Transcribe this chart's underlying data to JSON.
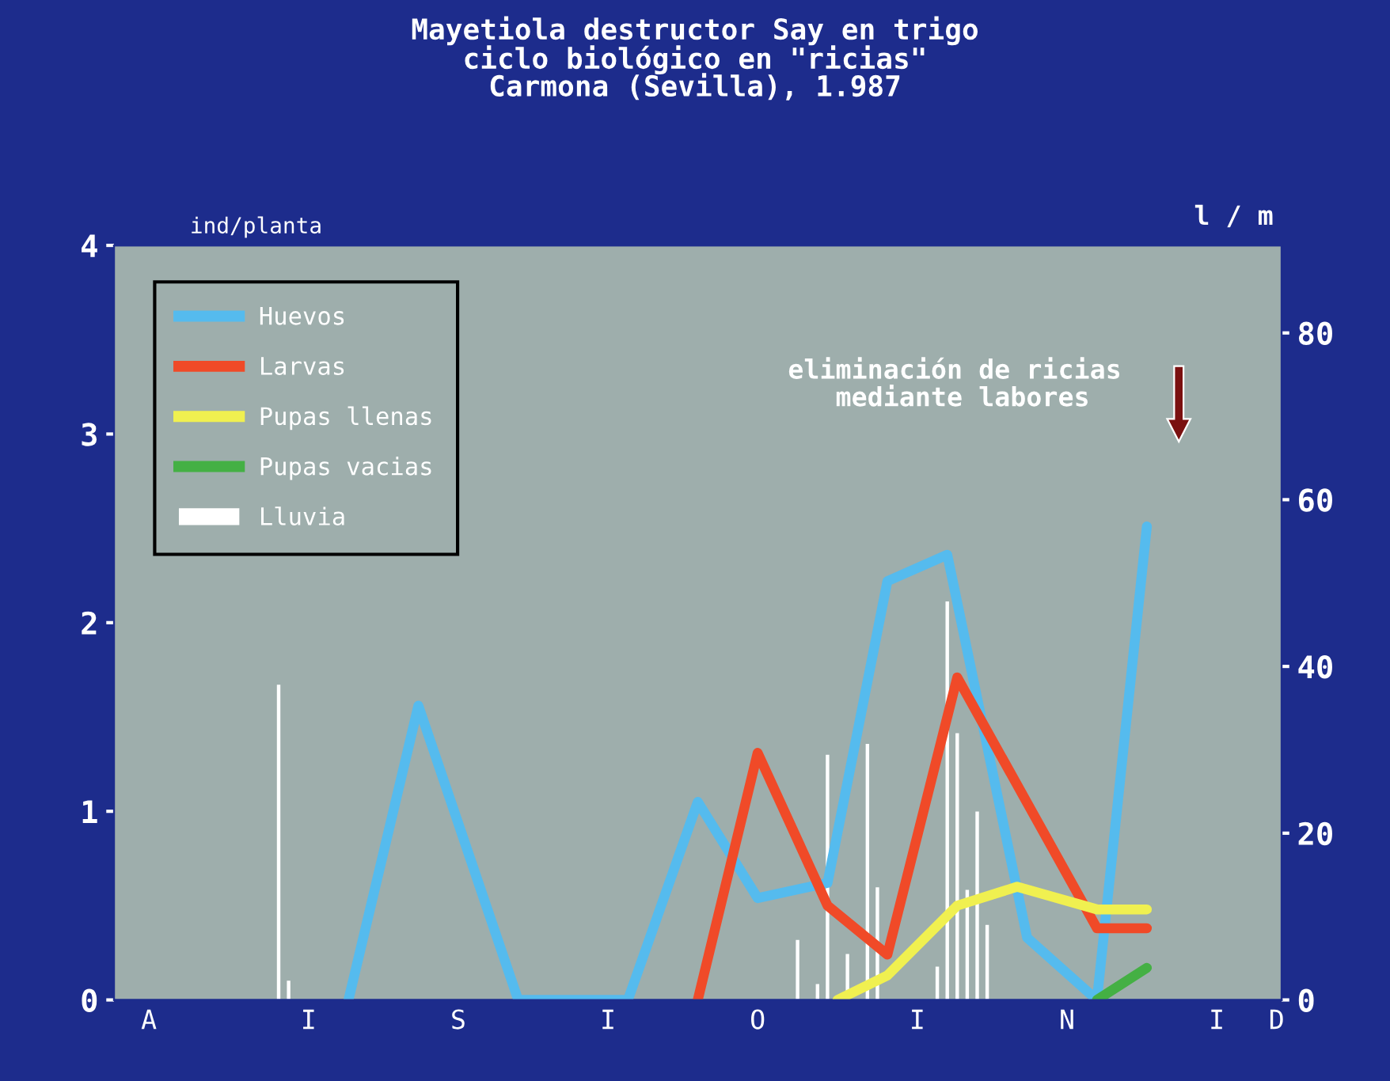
{
  "chart_data": {
    "type": "line",
    "title": "Mayetiola destructor Say en trigo\nciclo biológico en \"ricias\"\nCarmona (Sevilla), 1.987",
    "ylabel": "ind/planta",
    "y2label": "l / m",
    "categories": [
      null,
      null,
      null,
      "A",
      null,
      null,
      null,
      null,
      null,
      null,
      null,
      null,
      null,
      null,
      null,
      null,
      null,
      null,
      null,
      "I",
      null,
      null,
      null,
      null,
      null,
      null,
      null,
      null,
      null,
      null,
      null,
      null,
      null,
      null,
      "S",
      null,
      null,
      null,
      null,
      null,
      null,
      null,
      null,
      null,
      null,
      null,
      null,
      null,
      null,
      "I",
      null,
      null,
      null,
      null,
      null,
      null,
      null,
      null,
      null,
      null,
      null,
      null,
      null,
      null,
      "O",
      null,
      null,
      null,
      null,
      null,
      null,
      null,
      null,
      null,
      null,
      null,
      null,
      null,
      null,
      null,
      "I",
      null,
      null,
      null,
      null,
      null,
      null,
      null,
      null,
      null,
      null,
      null,
      null,
      null,
      null,
      "N",
      null,
      null,
      null,
      null,
      null,
      null,
      null,
      null,
      null,
      null,
      null,
      null,
      null,
      null,
      "I",
      null,
      null,
      null,
      null,
      null,
      "D"
    ],
    "ylim": [
      0,
      4
    ],
    "yticks": [
      0,
      1,
      2,
      3,
      4
    ],
    "y2lim": [
      0,
      90.5
    ],
    "y2ticks": [
      0,
      20,
      40,
      60,
      80
    ],
    "grid": false,
    "legend": "top left",
    "marker": "none",
    "line_style": "solid",
    "series": [
      {
        "name": "Huevos",
        "color": "#55bbee",
        "values": [
          null,
          null,
          null,
          null,
          null,
          null,
          null,
          null,
          null,
          null,
          null,
          null,
          null,
          null,
          null,
          null,
          null,
          null,
          null,
          null,
          null,
          null,
          null,
          0,
          null,
          null,
          null,
          null,
          null,
          null,
          1.56,
          null,
          null,
          null,
          null,
          null,
          null,
          null,
          null,
          null,
          0,
          null,
          null,
          null,
          null,
          null,
          null,
          null,
          null,
          null,
          null,
          0,
          null,
          null,
          null,
          null,
          null,
          null,
          1.05,
          null,
          null,
          null,
          null,
          null,
          0.54,
          null,
          null,
          null,
          null,
          null,
          null,
          0.62,
          null,
          null,
          null,
          null,
          null,
          2.22,
          null,
          null,
          null,
          null,
          null,
          2.36,
          null,
          null,
          null,
          null,
          null,
          null,
          null,
          0.33,
          null,
          null,
          null,
          null,
          null,
          null,
          0,
          null,
          null,
          null,
          null,
          2.51,
          null,
          null,
          null,
          null,
          null,
          null,
          null,
          null,
          null,
          null,
          null,
          null,
          null
        ]
      },
      {
        "name": "Larvas",
        "color": "#f04a28",
        "values": [
          null,
          null,
          null,
          null,
          null,
          null,
          null,
          null,
          null,
          null,
          null,
          null,
          null,
          null,
          null,
          null,
          null,
          null,
          null,
          null,
          null,
          null,
          null,
          null,
          null,
          null,
          null,
          null,
          null,
          null,
          null,
          null,
          null,
          null,
          null,
          null,
          null,
          null,
          null,
          null,
          null,
          null,
          null,
          null,
          null,
          null,
          null,
          null,
          null,
          null,
          null,
          null,
          null,
          null,
          null,
          null,
          null,
          null,
          0,
          null,
          null,
          null,
          null,
          null,
          1.31,
          null,
          null,
          null,
          null,
          null,
          null,
          0.5,
          null,
          null,
          null,
          null,
          null,
          0.24,
          null,
          null,
          null,
          null,
          null,
          null,
          1.71,
          null,
          null,
          null,
          null,
          null,
          null,
          null,
          null,
          null,
          null,
          null,
          null,
          null,
          0.38,
          null,
          null,
          null,
          null,
          0.38,
          null,
          null,
          null,
          null,
          null,
          null,
          null,
          null,
          null,
          null,
          null,
          null,
          null
        ]
      },
      {
        "name": "Pupas llenas",
        "color": "#f0f050",
        "values": [
          null,
          null,
          null,
          null,
          null,
          null,
          null,
          null,
          null,
          null,
          null,
          null,
          null,
          null,
          null,
          null,
          null,
          null,
          null,
          null,
          null,
          null,
          null,
          null,
          null,
          null,
          null,
          null,
          null,
          null,
          null,
          null,
          null,
          null,
          null,
          null,
          null,
          null,
          null,
          null,
          null,
          null,
          null,
          null,
          null,
          null,
          null,
          null,
          null,
          null,
          null,
          null,
          null,
          null,
          null,
          null,
          null,
          null,
          null,
          null,
          null,
          null,
          null,
          null,
          null,
          null,
          null,
          null,
          null,
          null,
          null,
          null,
          0,
          null,
          null,
          null,
          null,
          0.13,
          null,
          null,
          null,
          null,
          null,
          null,
          0.5,
          null,
          null,
          null,
          null,
          null,
          0.6,
          null,
          null,
          null,
          null,
          null,
          null,
          null,
          0.48,
          null,
          null,
          null,
          null,
          0.48,
          null,
          null,
          null,
          null,
          null,
          null,
          null,
          null,
          null,
          null,
          null,
          null,
          null
        ]
      },
      {
        "name": "Pupas vacias",
        "color": "#44b044",
        "values": [
          null,
          null,
          null,
          null,
          null,
          null,
          null,
          null,
          null,
          null,
          null,
          null,
          null,
          null,
          null,
          null,
          null,
          null,
          null,
          null,
          null,
          null,
          null,
          null,
          null,
          null,
          null,
          null,
          null,
          null,
          null,
          null,
          null,
          null,
          null,
          null,
          null,
          null,
          null,
          null,
          null,
          null,
          null,
          null,
          null,
          null,
          null,
          null,
          null,
          null,
          null,
          null,
          null,
          null,
          null,
          null,
          null,
          null,
          null,
          null,
          null,
          null,
          null,
          null,
          null,
          null,
          null,
          null,
          null,
          null,
          null,
          null,
          null,
          null,
          null,
          null,
          null,
          null,
          null,
          null,
          null,
          null,
          null,
          null,
          null,
          null,
          null,
          null,
          null,
          null,
          null,
          null,
          null,
          null,
          null,
          null,
          null,
          null,
          0,
          null,
          null,
          null,
          null,
          0.17,
          null,
          null,
          null,
          null,
          null,
          null,
          null,
          null,
          null,
          null,
          null,
          null,
          null
        ]
      },
      {
        "name": "Lluvia",
        "type": "bar",
        "axis": "y2",
        "color": "#ffffff",
        "values": [
          null,
          null,
          null,
          null,
          null,
          null,
          null,
          null,
          null,
          null,
          null,
          null,
          null,
          null,
          null,
          null,
          37.8,
          2.3,
          null,
          null,
          null,
          null,
          null,
          null,
          null,
          null,
          null,
          null,
          null,
          null,
          null,
          null,
          null,
          null,
          null,
          null,
          null,
          null,
          null,
          null,
          null,
          null,
          null,
          null,
          null,
          null,
          null,
          null,
          null,
          null,
          null,
          null,
          null,
          null,
          null,
          null,
          null,
          null,
          null,
          null,
          null,
          null,
          null,
          null,
          null,
          null,
          null,
          null,
          7.2,
          null,
          1.9,
          29.4,
          null,
          5.5,
          null,
          30.7,
          13.5,
          null,
          null,
          null,
          null,
          null,
          4,
          47.8,
          32,
          13.2,
          22.6,
          9,
          null,
          null,
          null,
          null,
          null,
          null,
          null,
          null,
          null,
          null,
          null,
          null,
          null,
          null,
          null,
          null,
          null,
          null,
          null,
          null,
          null,
          null,
          null,
          null,
          null,
          null,
          null,
          null,
          null
        ]
      }
    ],
    "annotations": [
      "eliminación de ricias\n mediante labores"
    ]
  }
}
